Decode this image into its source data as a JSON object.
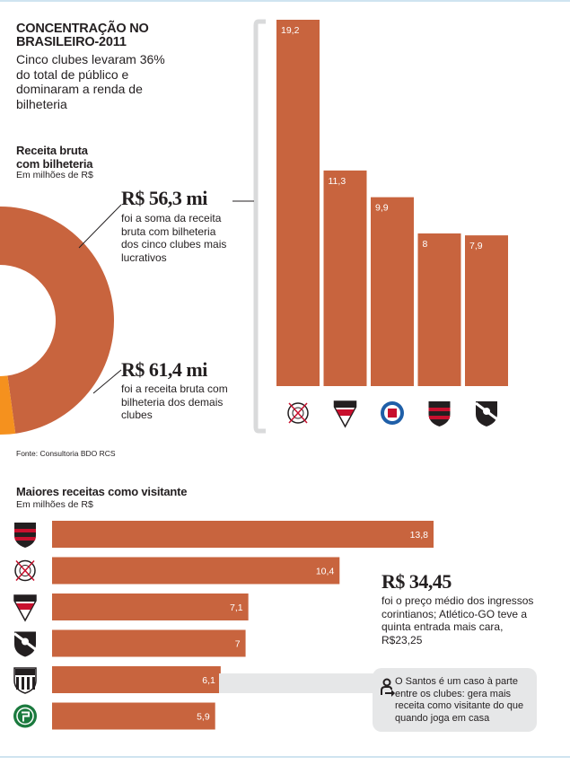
{
  "title": "CONCENTRAÇÃO NO BRASILEIRO-2011",
  "subtitle": "Cinco clubes levaram 36% do total de público e dominaram a renda de bilheteria",
  "revenue_section": {
    "title_line1": "Receita bruta",
    "title_line2": "com bilheteria",
    "unit": "Em milhões de R$",
    "top5": {
      "value": "R$ 56,3 mi",
      "text": "foi a soma da receita bruta com bilheteria dos cinco clubes mais lucrativos"
    },
    "others": {
      "value": "R$ 61,4 mi",
      "text": "foi a receita bruta com bilheteria dos demais clubes"
    }
  },
  "source": "Fonte: Consultoria BDO RCS",
  "away_section": {
    "title": "Maiores receitas como visitante",
    "unit": "Em milhões de R$",
    "highlight": {
      "value": "R$ 34,45",
      "text": "foi o preço médio dos ingressos corintianos; Atlético-GO teve a quinta entrada mais cara, R$23,25"
    },
    "note": "O Santos é um caso à parte entre os clubes: gera mais receita como visitante do que quando joga em casa"
  },
  "colors": {
    "bar": "#c8643e",
    "donut_others": "#f5911e",
    "grey": "#e6e7e8",
    "text": "#231f20"
  },
  "chart_data": [
    {
      "type": "pie",
      "labels": [
        "R$ 56,3 mi",
        "R$ 61,4 mi"
      ],
      "values": [
        56.3,
        61.4
      ],
      "colors": [
        "#c8643e",
        "#f5911e"
      ]
    },
    {
      "type": "bar",
      "categories": [
        "corinthians-logo",
        "sao-paulo-logo",
        "bahia-logo",
        "flamengo-logo",
        "vasco-logo"
      ],
      "values": [
        19.2,
        11.3,
        9.9,
        8,
        7.9
      ],
      "labels": [
        "19,2",
        "11,3",
        "9,9",
        "8",
        "7,9"
      ],
      "ylim": [
        0,
        19.2
      ]
    },
    {
      "type": "bar",
      "orientation": "horizontal",
      "categories": [
        "flamengo-logo",
        "corinthians-logo",
        "sao-paulo-logo",
        "vasco-logo",
        "santos-logo",
        "palmeiras-logo"
      ],
      "values": [
        13.8,
        10.4,
        7.1,
        7,
        6.1,
        5.9
      ],
      "labels": [
        "13,8",
        "10,4",
        "7,1",
        "7",
        "6,1",
        "5,9"
      ]
    }
  ]
}
